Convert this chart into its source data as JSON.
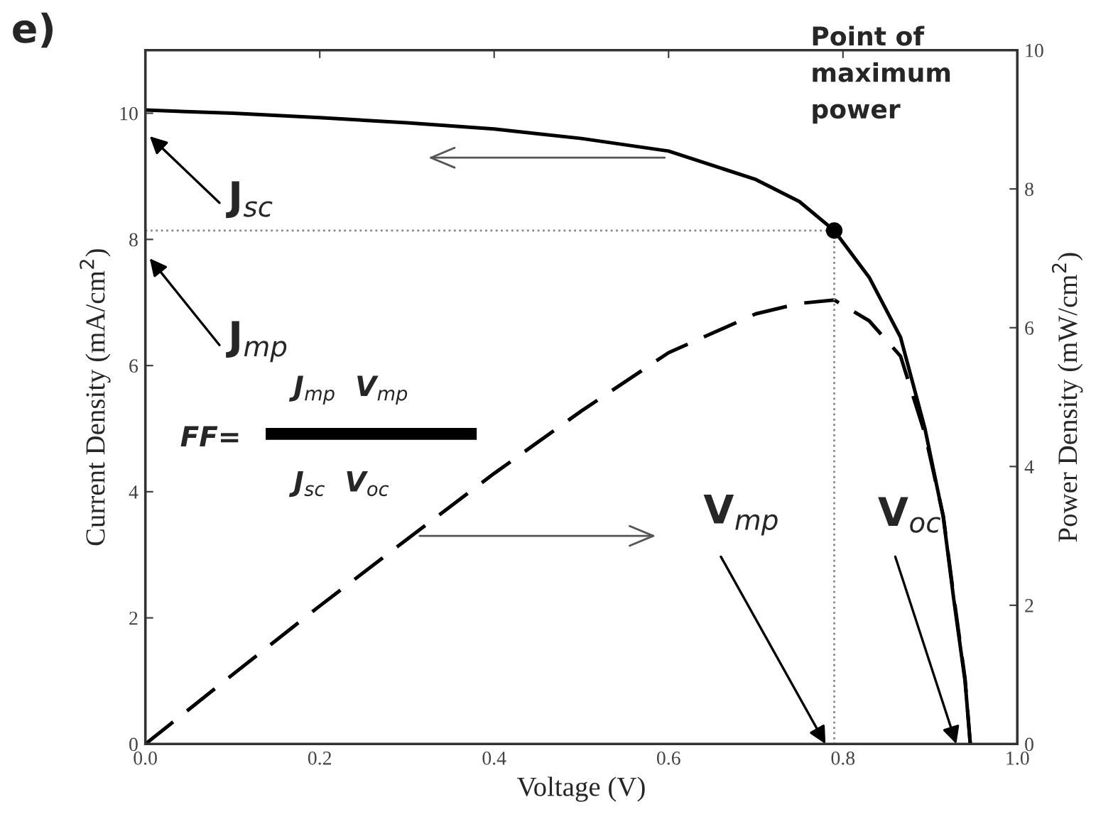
{
  "chart_data": {
    "type": "line",
    "title": "e)",
    "xlabel": "Voltage (V)",
    "ylabel": "Current Density (mA/cm$^{2}$)",
    "y2label": "Power Density (mW/cm$^{2}$)",
    "xlim": [
      0,
      1
    ],
    "xticks": [
      {
        "value": 0,
        "label": "0.0"
      },
      {
        "value": 0.2,
        "label": "0.2"
      },
      {
        "value": 0.4,
        "label": "0.4"
      },
      {
        "value": 0.6,
        "label": "0.6"
      },
      {
        "value": 0.8,
        "label": "0.8"
      },
      {
        "value": 1,
        "label": "1.0"
      }
    ],
    "ylim": [
      0,
      11
    ],
    "yticks": [
      0,
      2,
      4,
      6,
      8,
      10
    ],
    "y2lim": [
      0,
      10
    ],
    "y2ticks": [
      0,
      2,
      4,
      6,
      8,
      10
    ],
    "grid": false,
    "legend": false,
    "series": [
      {
        "color": "#000000",
        "line_style": "solid",
        "x": [
          0,
          0.1,
          0.2,
          0.3,
          0.4,
          0.5,
          0.6,
          0.7,
          0.75,
          0.79,
          0.83,
          0.866,
          0.894,
          0.915,
          0.927,
          0.94,
          0.946
        ],
        "values": [
          10.05,
          10.0,
          9.93,
          9.85,
          9.75,
          9.6,
          9.4,
          8.95,
          8.6,
          8.14,
          7.4,
          6.45,
          5.0,
          3.6,
          2.3,
          1.0,
          0
        ]
      },
      {
        "color": "#000000",
        "line_style": "dashed",
        "axis": "y2",
        "x": [
          0,
          0.1,
          0.2,
          0.3,
          0.4,
          0.5,
          0.6,
          0.7,
          0.75,
          0.79,
          0.83,
          0.866,
          0.894,
          0.915,
          0.927,
          0.94,
          0.946
        ],
        "values": [
          0,
          1.0,
          1.99,
          2.95,
          3.9,
          4.8,
          5.64,
          6.2,
          6.35,
          6.4,
          6.1,
          5.59,
          4.47,
          3.29,
          2.13,
          0.94,
          0
        ]
      },
      {
        "color": "#888888",
        "line_style": "dotted",
        "x": [
          0,
          0.79
        ],
        "values": [
          8.14,
          8.14
        ]
      },
      {
        "color": "#888888",
        "line_style": "dotted",
        "x": [
          0.79,
          0.79
        ],
        "values": [
          8.14,
          0
        ]
      },
      {
        "type": "scatter",
        "color": "#000000",
        "marker": "circle",
        "x": [
          0.79
        ],
        "values": [
          8.14
        ]
      }
    ],
    "annotations": [
      "J$_{sc}$",
      "J$_{mp}$",
      "Point of\nmaximum\npower",
      "V$_{mp}$",
      "V$_{oc}$",
      "FF=",
      "J$_{mp}$  V$_{mp}$",
      "J$_{sc}$  V$_{oc}$"
    ]
  }
}
